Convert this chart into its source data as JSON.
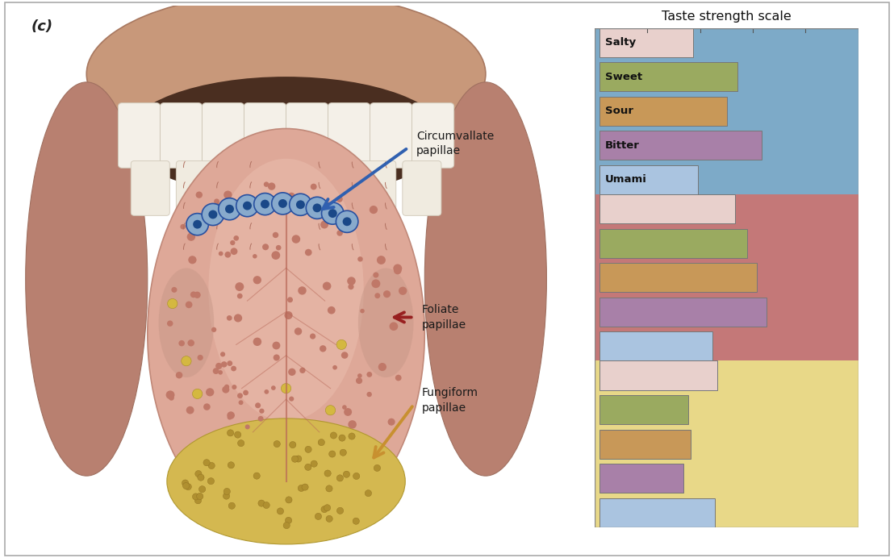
{
  "title": "Taste strength scale",
  "panel_label": "(c)",
  "bg": "#ffffff",
  "section_colors": [
    "#7daac8",
    "#c47878",
    "#e8d888"
  ],
  "bar_colors": [
    "#e8d0cc",
    "#9aaa60",
    "#c89858",
    "#a880a8",
    "#aac4e0"
  ],
  "bar_labels": [
    "Salty",
    "Sweet",
    "Sour",
    "Bitter",
    "Umami"
  ],
  "section1_values": [
    0.38,
    0.56,
    0.52,
    0.66,
    0.4
  ],
  "section2_values": [
    0.55,
    0.6,
    0.64,
    0.68,
    0.46
  ],
  "section3_values": [
    0.48,
    0.36,
    0.37,
    0.34,
    0.47
  ],
  "arrow_circ_color": "#3060b0",
  "arrow_foli_color": "#982020",
  "arrow_fung_color": "#c89030",
  "tongue_pink": "#dea898",
  "tongue_light": "#e8b8a8",
  "tongue_tip_color": "#d4b850",
  "teeth_color": "#f2ede4",
  "mouth_bg_color": "#c49080",
  "mouth_dark": "#4a2e20",
  "cheek_color": "#b88070"
}
